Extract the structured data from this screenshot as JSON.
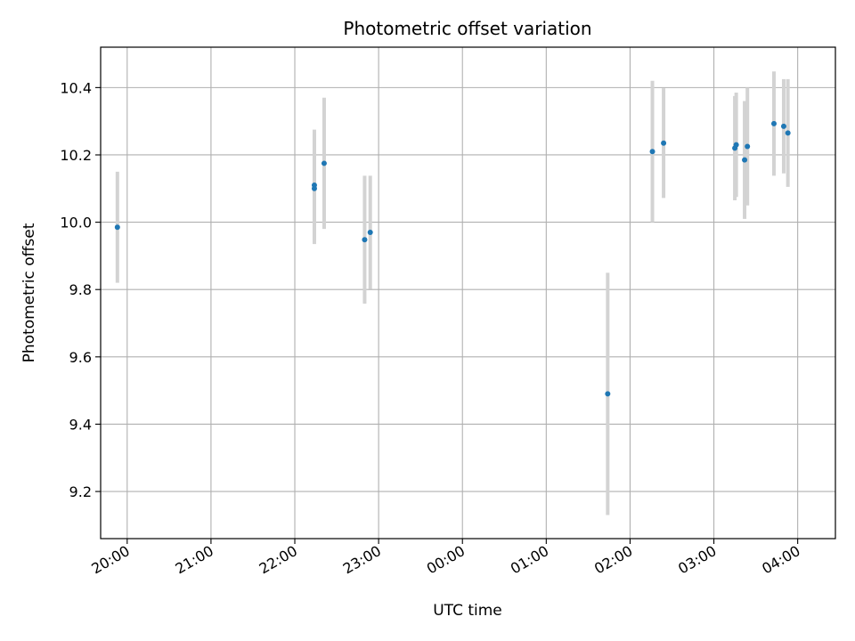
{
  "chart_data": {
    "type": "scatter",
    "title": "Photometric offset variation",
    "xlabel": "UTC time",
    "ylabel": "Photometric offset",
    "grid": true,
    "xlim": [
      "19:41",
      "04:27"
    ],
    "ylim": [
      9.06,
      10.52
    ],
    "x_ticks": [
      "20:00",
      "21:00",
      "22:00",
      "23:00",
      "00:00",
      "01:00",
      "02:00",
      "03:00",
      "04:00"
    ],
    "y_ticks": [
      "9.2",
      "9.4",
      "9.6",
      "9.8",
      "10.0",
      "10.2",
      "10.4"
    ],
    "point_color": "#1f77b4",
    "errorbar_color": "#d3d3d3",
    "points": [
      {
        "x": "19:53",
        "y": 9.985,
        "err": 0.165
      },
      {
        "x": "22:14",
        "y": 10.11,
        "err": 0.165
      },
      {
        "x": "22:14",
        "y": 10.1,
        "err": 0.165
      },
      {
        "x": "22:21",
        "y": 10.175,
        "err": 0.195
      },
      {
        "x": "22:50",
        "y": 9.948,
        "err": 0.19
      },
      {
        "x": "22:54",
        "y": 9.97,
        "err": 0.168
      },
      {
        "x": "01:44",
        "y": 9.49,
        "err": 0.36
      },
      {
        "x": "02:16",
        "y": 10.21,
        "err": 0.21
      },
      {
        "x": "02:24",
        "y": 10.235,
        "err": 0.163
      },
      {
        "x": "03:15",
        "y": 10.22,
        "err": 0.155
      },
      {
        "x": "03:16",
        "y": 10.23,
        "err": 0.155
      },
      {
        "x": "03:22",
        "y": 10.185,
        "err": 0.175
      },
      {
        "x": "03:24",
        "y": 10.225,
        "err": 0.175
      },
      {
        "x": "03:43",
        "y": 10.293,
        "err": 0.155
      },
      {
        "x": "03:50",
        "y": 10.285,
        "err": 0.14
      },
      {
        "x": "03:53",
        "y": 10.265,
        "err": 0.16
      }
    ]
  }
}
